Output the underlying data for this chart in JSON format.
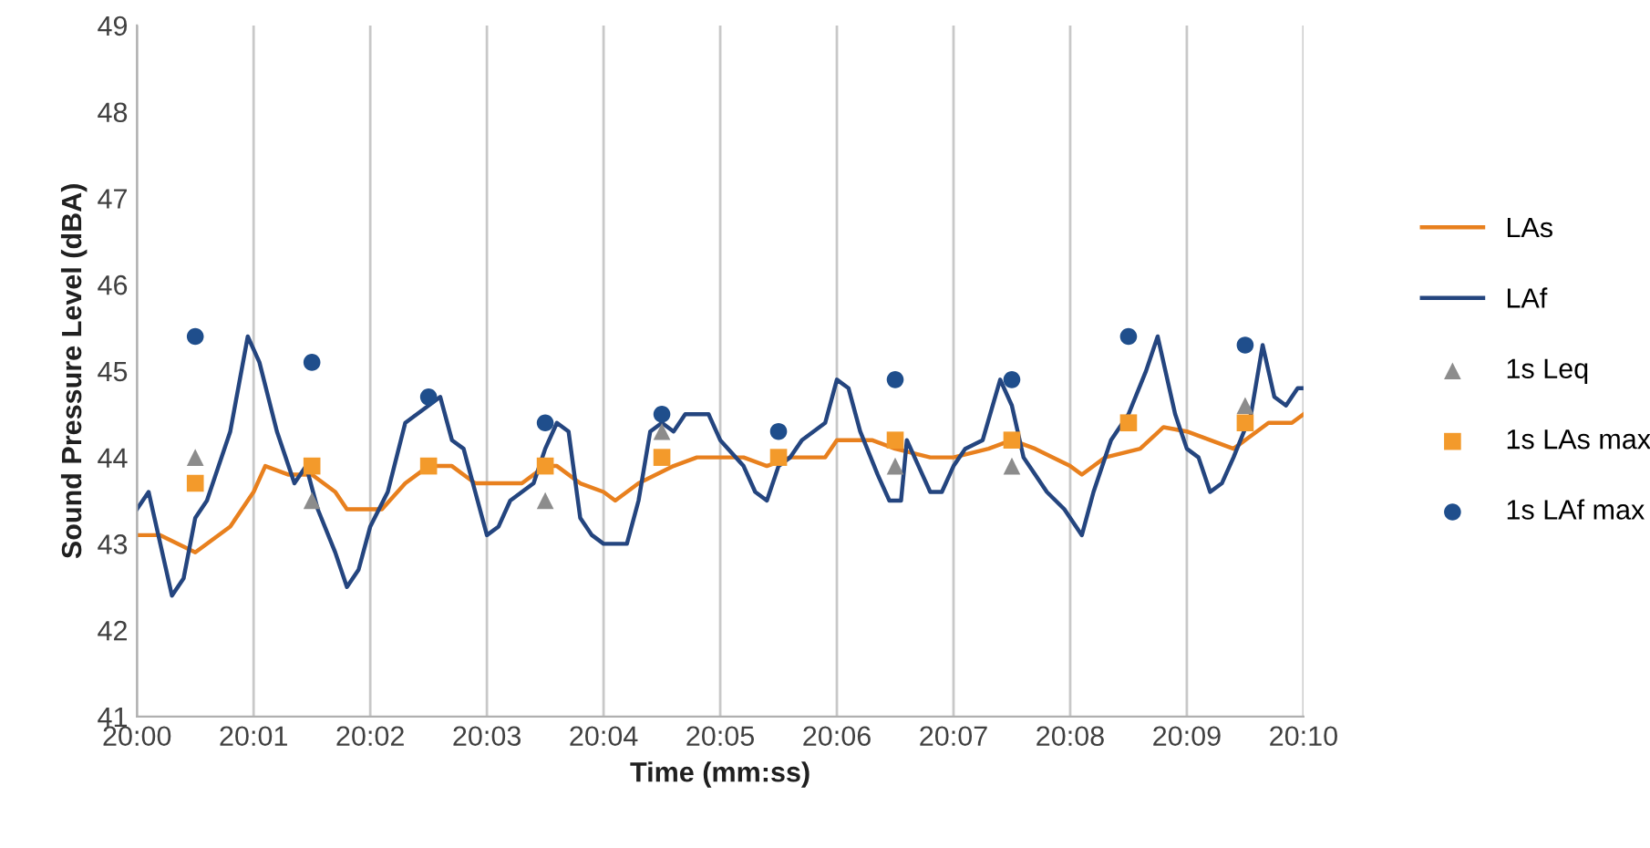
{
  "chart_data": {
    "type": "line",
    "xlabel": "Time (mm:ss)",
    "ylabel": "Sound Pressure Level (dBA)",
    "xlim": [
      20,
      20.166667
    ],
    "xticks": [
      {
        "value": 20,
        "label": "20:00"
      },
      {
        "value": 20.016667,
        "label": "20:01"
      },
      {
        "value": 20.033333,
        "label": "20:02"
      },
      {
        "value": 20.05,
        "label": "20:03"
      },
      {
        "value": 20.066667,
        "label": "20:04"
      },
      {
        "value": 20.083333,
        "label": "20:05"
      },
      {
        "value": 20.1,
        "label": "20:06"
      },
      {
        "value": 20.116667,
        "label": "20:07"
      },
      {
        "value": 20.133333,
        "label": "20:08"
      },
      {
        "value": 20.15,
        "label": "20:09"
      },
      {
        "value": 20.166667,
        "label": "20:10"
      }
    ],
    "ylim": [
      41,
      49
    ],
    "yticks": [
      41,
      42,
      43,
      44,
      45,
      46,
      47,
      48,
      49
    ],
    "grid": "x",
    "legend": "right",
    "series": [
      {
        "name": "LAs",
        "color": "#e8801e",
        "marker": "none",
        "x": [
          20,
          20.003333,
          20.008333,
          20.013333,
          20.016667,
          20.018333,
          20.021667,
          20.025,
          20.028333,
          20.03,
          20.035,
          20.038333,
          20.041667,
          20.045,
          20.048333,
          20.055,
          20.058333,
          20.06,
          20.063333,
          20.066667,
          20.068333,
          20.071667,
          20.076667,
          20.08,
          20.086667,
          20.09,
          20.093333,
          20.098333,
          20.1,
          20.105,
          20.108333,
          20.113333,
          20.116667,
          20.121667,
          20.125,
          20.128333,
          20.133333,
          20.135,
          20.138333,
          20.143333,
          20.146667,
          20.15,
          20.153333,
          20.156667,
          20.16,
          20.161667,
          20.165,
          20.166667
        ],
        "values": [
          43.1,
          43.1,
          42.9,
          43.2,
          43.6,
          43.9,
          43.8,
          43.8,
          43.6,
          43.4,
          43.4,
          43.7,
          43.9,
          43.9,
          43.7,
          43.7,
          43.9,
          43.9,
          43.7,
          43.6,
          43.5,
          43.7,
          43.9,
          44.0,
          44.0,
          43.9,
          44.0,
          44.0,
          44.2,
          44.2,
          44.1,
          44.0,
          44.0,
          44.1,
          44.2,
          44.1,
          43.9,
          43.8,
          44.0,
          44.1,
          44.35,
          44.3,
          44.2,
          44.1,
          44.3,
          44.4,
          44.4,
          44.5
        ]
      },
      {
        "name": "LAf",
        "color": "#24457f",
        "marker": "none",
        "x": [
          20,
          20.001667,
          20.003333,
          20.005,
          20.006667,
          20.008333,
          20.01,
          20.013333,
          20.015833,
          20.0175,
          20.02,
          20.0225,
          20.024167,
          20.025833,
          20.028333,
          20.03,
          20.031667,
          20.033333,
          20.035833,
          20.038333,
          20.041667,
          20.043333,
          20.045,
          20.046667,
          20.048333,
          20.05,
          20.051667,
          20.053333,
          20.056667,
          20.058333,
          20.06,
          20.061667,
          20.063333,
          20.065,
          20.066667,
          20.07,
          20.071667,
          20.073333,
          20.075,
          20.076667,
          20.078333,
          20.081667,
          20.083333,
          20.086667,
          20.088333,
          20.09,
          20.091667,
          20.093333,
          20.095,
          20.098333,
          20.1,
          20.101667,
          20.103333,
          20.105833,
          20.1075,
          20.109167,
          20.11,
          20.111667,
          20.113333,
          20.115,
          20.116667,
          20.118333,
          20.120833,
          20.123333,
          20.125,
          20.126667,
          20.128333,
          20.13,
          20.1325,
          20.135,
          20.136667,
          20.139167,
          20.141667,
          20.144167,
          20.145833,
          20.148333,
          20.15,
          20.151667,
          20.153333,
          20.155,
          20.156667,
          20.159167,
          20.160833,
          20.1625,
          20.164167,
          20.165833,
          20.166667
        ],
        "values": [
          43.4,
          43.6,
          43.0,
          42.4,
          42.6,
          43.3,
          43.5,
          44.3,
          45.4,
          45.1,
          44.3,
          43.7,
          43.9,
          43.4,
          42.9,
          42.5,
          42.7,
          43.2,
          43.6,
          44.4,
          44.6,
          44.7,
          44.2,
          44.1,
          43.6,
          43.1,
          43.2,
          43.5,
          43.7,
          44.1,
          44.4,
          44.3,
          43.3,
          43.1,
          43.0,
          43.0,
          43.5,
          44.3,
          44.4,
          44.3,
          44.5,
          44.5,
          44.2,
          43.9,
          43.6,
          43.5,
          43.9,
          44.0,
          44.2,
          44.4,
          44.9,
          44.8,
          44.3,
          43.8,
          43.5,
          43.5,
          44.2,
          43.9,
          43.6,
          43.6,
          43.9,
          44.1,
          44.2,
          44.9,
          44.6,
          44.0,
          43.8,
          43.6,
          43.4,
          43.1,
          43.6,
          44.2,
          44.5,
          45.0,
          45.4,
          44.5,
          44.1,
          44.0,
          43.6,
          43.7,
          44.0,
          44.5,
          45.3,
          44.7,
          44.6,
          44.8,
          44.8
        ]
      },
      {
        "name": "1s Leq",
        "type": "scatter",
        "color": "#8c8c8c",
        "marker": "triangle",
        "x": [
          20.008333,
          20.025,
          20.041667,
          20.058333,
          20.075,
          20.091667,
          20.108333,
          20.125,
          20.141667,
          20.158333
        ],
        "values": [
          44.0,
          43.5,
          null,
          43.5,
          44.3,
          null,
          43.9,
          43.9,
          null,
          44.6
        ]
      },
      {
        "name": "1s LAs max",
        "type": "scatter",
        "color": "#f39a2b",
        "marker": "square",
        "x": [
          20.008333,
          20.025,
          20.041667,
          20.058333,
          20.075,
          20.091667,
          20.108333,
          20.125,
          20.141667,
          20.158333
        ],
        "values": [
          43.7,
          43.9,
          43.9,
          43.9,
          44.0,
          44.0,
          44.2,
          44.2,
          44.4,
          44.4
        ]
      },
      {
        "name": "1s LAf max",
        "type": "scatter",
        "color": "#1f4e8c",
        "marker": "circle",
        "x": [
          20.008333,
          20.025,
          20.041667,
          20.058333,
          20.075,
          20.091667,
          20.108333,
          20.125,
          20.141667,
          20.158333
        ],
        "values": [
          45.4,
          45.1,
          44.7,
          44.4,
          44.5,
          44.3,
          44.9,
          44.9,
          45.4,
          45.3
        ]
      }
    ]
  }
}
